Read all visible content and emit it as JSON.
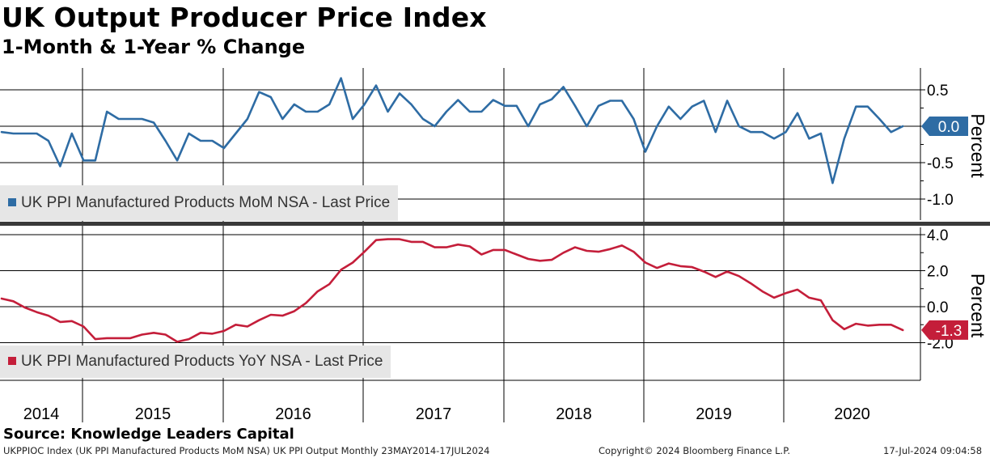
{
  "header": {
    "title": "UK Output Producer Price Index",
    "subtitle": "1-Month & 1-Year % Change"
  },
  "footer": {
    "source": "Source: Knowledge Leaders Capital",
    "info": "UKPPIOC Index (UK PPI Manufactured Products MoM NSA) UK PPI Output  Monthly 23MAY2014-17JUL2024",
    "copyright": "Copyright© 2024 Bloomberg Finance L.P.",
    "timestamp": "17-Jul-2024 09:04:58"
  },
  "colors": {
    "mom": "#2e6ca4",
    "yoy": "#c41e3a",
    "grid": "#000000",
    "legend_bg": "#e6e6e6"
  },
  "chart_data": [
    {
      "type": "line",
      "ylabel": "Percent",
      "ylim": [
        -1.25,
        0.8
      ],
      "yticks": [
        0.5,
        0.0,
        -0.5,
        -1.0
      ],
      "ytick_labels": [
        "0.5",
        "0.0",
        "-0.5",
        "-1.0"
      ],
      "last_value_label": "0.0",
      "grid": true,
      "legend_position": "bottom-left",
      "x_labels": [
        "2014",
        "2015",
        "2016",
        "2017",
        "2018",
        "2019",
        "2020"
      ],
      "series": [
        {
          "name": "UK PPI Manufactured Products MoM NSA - Last Price",
          "color": "#2e6ca4",
          "start": "2014-05",
          "values": [
            -0.08,
            -0.1,
            -0.1,
            -0.1,
            -0.2,
            -0.55,
            -0.1,
            -0.47,
            -0.47,
            0.2,
            0.1,
            0.1,
            0.1,
            0.05,
            -0.2,
            -0.47,
            -0.1,
            -0.2,
            -0.2,
            -0.3,
            -0.1,
            0.1,
            0.47,
            0.4,
            0.1,
            0.3,
            0.2,
            0.2,
            0.3,
            0.66,
            0.1,
            0.3,
            0.56,
            0.2,
            0.45,
            0.3,
            0.1,
            0.0,
            0.2,
            0.36,
            0.2,
            0.2,
            0.36,
            0.28,
            0.28,
            0.0,
            0.3,
            0.37,
            0.54,
            0.28,
            0.0,
            0.28,
            0.35,
            0.35,
            0.1,
            -0.35,
            0.0,
            0.27,
            0.1,
            0.27,
            0.35,
            -0.08,
            0.35,
            0.0,
            -0.08,
            -0.08,
            -0.17,
            -0.08,
            0.18,
            -0.17,
            -0.1,
            -0.78,
            -0.17,
            0.27,
            0.27,
            0.1,
            -0.08,
            0.0
          ]
        }
      ]
    },
    {
      "type": "line",
      "ylabel": "Percent",
      "ylim": [
        -4.2,
        4.3
      ],
      "yticks": [
        4.0,
        2.0,
        0.0,
        -2.0
      ],
      "ytick_labels": [
        "4.0",
        "2.0",
        "0.0",
        "-2.0"
      ],
      "last_value_label": "-1.3",
      "grid": true,
      "legend_position": "bottom-left",
      "x_labels": [
        "2014",
        "2015",
        "2016",
        "2017",
        "2018",
        "2019",
        "2020"
      ],
      "series": [
        {
          "name": "UK PPI Manufactured Products YoY NSA - Last Price",
          "color": "#c41e3a",
          "start": "2014-05",
          "values": [
            0.45,
            0.3,
            -0.05,
            -0.3,
            -0.5,
            -0.85,
            -0.8,
            -1.1,
            -1.8,
            -1.75,
            -1.75,
            -1.75,
            -1.55,
            -1.45,
            -1.55,
            -1.95,
            -1.8,
            -1.45,
            -1.5,
            -1.35,
            -1.0,
            -1.1,
            -0.75,
            -0.45,
            -0.5,
            -0.25,
            0.2,
            0.85,
            1.25,
            2.05,
            2.45,
            3.05,
            3.7,
            3.75,
            3.75,
            3.6,
            3.6,
            3.3,
            3.3,
            3.45,
            3.35,
            2.9,
            3.15,
            3.15,
            2.9,
            2.65,
            2.55,
            2.6,
            3.0,
            3.3,
            3.1,
            3.05,
            3.2,
            3.4,
            3.05,
            2.45,
            2.15,
            2.4,
            2.25,
            2.2,
            1.95,
            1.65,
            1.95,
            1.7,
            1.3,
            0.85,
            0.5,
            0.75,
            0.95,
            0.5,
            0.35,
            -0.75,
            -1.25,
            -0.95,
            -1.05,
            -1.0,
            -1.0,
            -1.3
          ]
        }
      ]
    }
  ]
}
